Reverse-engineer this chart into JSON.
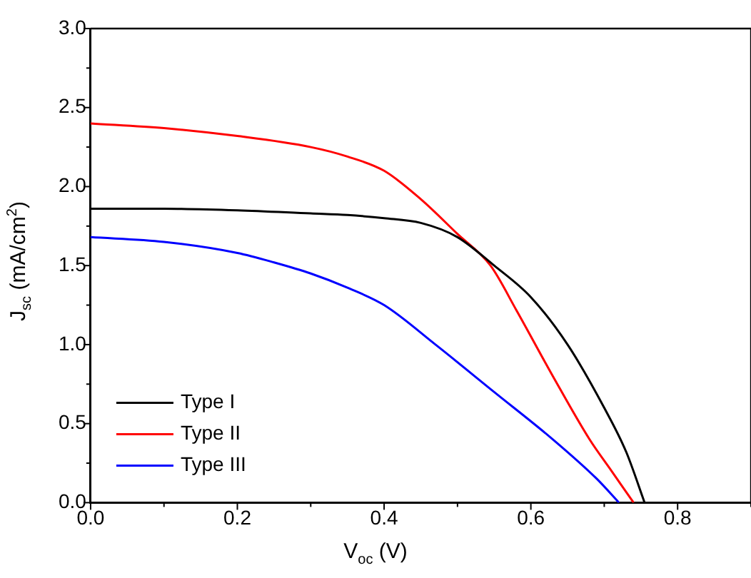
{
  "chart_data": {
    "type": "line",
    "xlabel": "V$_{oc}$ (V)",
    "ylabel": "J$_{sc}$ (mA/cm$^{2}$)",
    "xlim": [
      0,
      0.9
    ],
    "xticks": [
      {
        "value": 0,
        "label": "0.0"
      },
      {
        "value": 0.2,
        "label": "0.2"
      },
      {
        "value": 0.4,
        "label": "0.4"
      },
      {
        "value": 0.6,
        "label": "0.6"
      },
      {
        "value": 0.8,
        "label": "0.8"
      }
    ],
    "ylim": [
      0,
      3.0
    ],
    "yticks": [
      {
        "value": 0,
        "label": "0.0"
      },
      {
        "value": 0.5,
        "label": "0.5"
      },
      {
        "value": 1,
        "label": "1.0"
      },
      {
        "value": 1.5,
        "label": "1.5"
      },
      {
        "value": 2,
        "label": "2.0"
      },
      {
        "value": 2.5,
        "label": "2.5"
      },
      {
        "value": 3,
        "label": "3.0"
      }
    ],
    "grid": false,
    "legend": "bottom left",
    "marker": "none",
    "line_style": "solid",
    "series": [
      {
        "name": "Type I",
        "color": "#000000",
        "x": [
          0,
          0.1,
          0.2,
          0.3,
          0.35,
          0.4,
          0.45,
          0.5,
          0.55,
          0.6,
          0.65,
          0.7,
          0.73,
          0.755
        ],
        "values": [
          1.86,
          1.86,
          1.85,
          1.83,
          1.82,
          1.8,
          1.77,
          1.68,
          1.5,
          1.3,
          1.0,
          0.6,
          0.32,
          0
        ]
      },
      {
        "name": "Type II",
        "color": "#ff0000",
        "x": [
          0,
          0.1,
          0.2,
          0.3,
          0.35,
          0.4,
          0.45,
          0.5,
          0.545,
          0.58,
          0.63,
          0.68,
          0.71,
          0.74
        ],
        "values": [
          2.4,
          2.37,
          2.32,
          2.25,
          2.19,
          2.1,
          1.92,
          1.7,
          1.5,
          1.22,
          0.8,
          0.4,
          0.2,
          0
        ]
      },
      {
        "name": "Type III",
        "color": "#0000ff",
        "x": [
          0,
          0.1,
          0.2,
          0.25,
          0.3,
          0.35,
          0.4,
          0.47,
          0.55,
          0.63,
          0.69,
          0.72
        ],
        "values": [
          1.68,
          1.65,
          1.58,
          1.52,
          1.45,
          1.36,
          1.25,
          1.0,
          0.7,
          0.4,
          0.15,
          0
        ]
      }
    ]
  }
}
